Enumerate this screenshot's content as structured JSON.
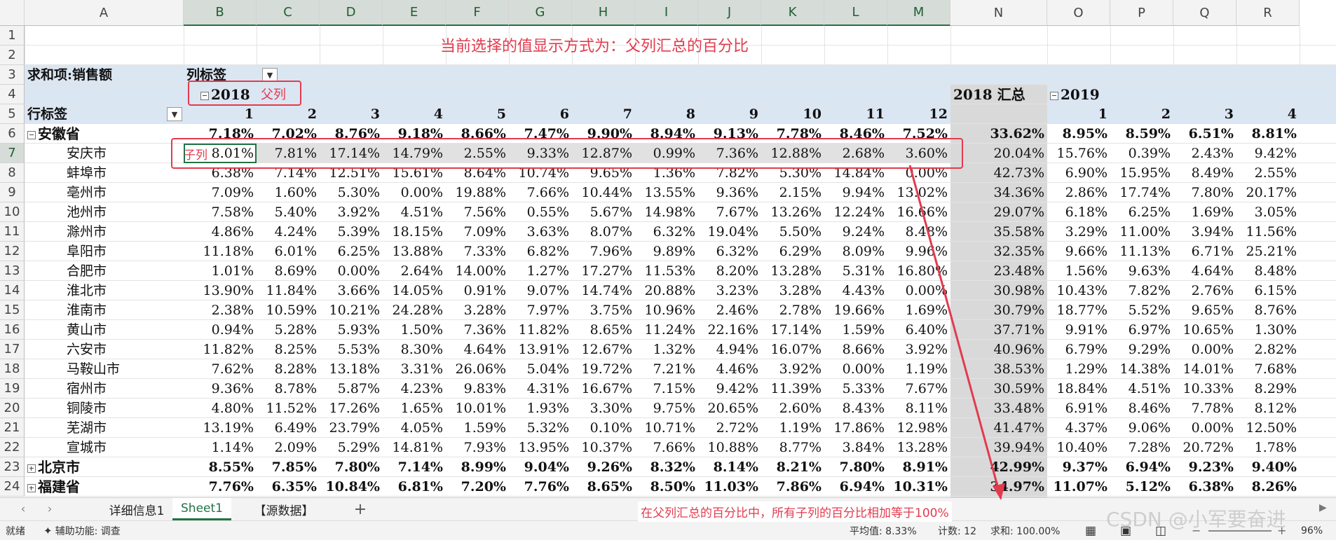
{
  "columns": [
    "A",
    "B",
    "C",
    "D",
    "E",
    "F",
    "G",
    "H",
    "I",
    "J",
    "K",
    "L",
    "M",
    "N",
    "O",
    "P",
    "Q",
    "R"
  ],
  "rows": [
    "1",
    "2",
    "3",
    "4",
    "5",
    "6",
    "7",
    "8",
    "9",
    "10",
    "11",
    "12",
    "13",
    "14",
    "15",
    "16",
    "17",
    "18",
    "19",
    "20",
    "21",
    "22",
    "23",
    "24"
  ],
  "pivot": {
    "sum_label": "求和项:销售额",
    "col_label_caption": "列标签",
    "row_label_caption": "行标签",
    "year1": "2018",
    "year1_total": "2018  汇总",
    "year2": "2019",
    "months1": [
      "1",
      "2",
      "3",
      "4",
      "5",
      "6",
      "7",
      "8",
      "9",
      "10",
      "11",
      "12"
    ],
    "months2": [
      "1",
      "2",
      "3",
      "4"
    ],
    "rows": [
      {
        "name": "安徽省",
        "level": 0,
        "bold": true,
        "toggle": "minus",
        "v": [
          "7.18%",
          "7.02%",
          "8.76%",
          "9.18%",
          "8.66%",
          "7.47%",
          "9.90%",
          "8.94%",
          "9.13%",
          "7.78%",
          "8.46%",
          "7.52%"
        ],
        "t": "33.62%",
        "w": [
          "8.95%",
          "8.59%",
          "6.51%",
          "8.81%"
        ]
      },
      {
        "name": "安庆市",
        "level": 1,
        "bold": false,
        "v": [
          "8.01%",
          "7.81%",
          "17.14%",
          "14.79%",
          "2.55%",
          "9.33%",
          "12.87%",
          "0.99%",
          "7.36%",
          "12.88%",
          "2.68%",
          "3.60%"
        ],
        "t": "20.04%",
        "w": [
          "15.76%",
          "0.39%",
          "2.43%",
          "9.42%"
        ]
      },
      {
        "name": "蚌埠市",
        "level": 1,
        "bold": false,
        "v": [
          "6.38%",
          "7.14%",
          "12.51%",
          "15.61%",
          "8.64%",
          "10.74%",
          "9.65%",
          "1.36%",
          "7.82%",
          "5.30%",
          "14.84%",
          "0.00%"
        ],
        "t": "42.73%",
        "w": [
          "6.90%",
          "15.95%",
          "8.49%",
          "2.55%"
        ]
      },
      {
        "name": "亳州市",
        "level": 1,
        "bold": false,
        "v": [
          "7.09%",
          "1.60%",
          "5.30%",
          "0.00%",
          "19.88%",
          "7.66%",
          "10.44%",
          "13.55%",
          "9.36%",
          "2.15%",
          "9.94%",
          "13.02%"
        ],
        "t": "34.36%",
        "w": [
          "2.86%",
          "17.74%",
          "7.80%",
          "20.17%"
        ]
      },
      {
        "name": "池州市",
        "level": 1,
        "bold": false,
        "v": [
          "7.58%",
          "5.40%",
          "3.92%",
          "4.51%",
          "7.56%",
          "0.55%",
          "5.67%",
          "14.98%",
          "7.67%",
          "13.26%",
          "12.24%",
          "16.66%"
        ],
        "t": "29.07%",
        "w": [
          "6.18%",
          "6.25%",
          "1.69%",
          "3.05%"
        ]
      },
      {
        "name": "滁州市",
        "level": 1,
        "bold": false,
        "v": [
          "4.86%",
          "4.24%",
          "5.39%",
          "18.15%",
          "7.09%",
          "3.63%",
          "8.07%",
          "6.32%",
          "19.04%",
          "5.50%",
          "9.24%",
          "8.48%"
        ],
        "t": "35.58%",
        "w": [
          "3.29%",
          "11.00%",
          "3.94%",
          "11.56%"
        ]
      },
      {
        "name": "阜阳市",
        "level": 1,
        "bold": false,
        "v": [
          "11.18%",
          "6.01%",
          "6.25%",
          "13.88%",
          "7.33%",
          "6.82%",
          "7.96%",
          "9.89%",
          "6.32%",
          "6.29%",
          "8.09%",
          "9.96%"
        ],
        "t": "32.35%",
        "w": [
          "9.66%",
          "11.13%",
          "6.71%",
          "25.21%"
        ]
      },
      {
        "name": "合肥市",
        "level": 1,
        "bold": false,
        "v": [
          "1.01%",
          "8.69%",
          "0.00%",
          "2.64%",
          "14.00%",
          "1.27%",
          "17.27%",
          "11.53%",
          "8.20%",
          "13.28%",
          "5.31%",
          "16.80%"
        ],
        "t": "23.48%",
        "w": [
          "1.56%",
          "9.63%",
          "4.64%",
          "8.48%"
        ]
      },
      {
        "name": "淮北市",
        "level": 1,
        "bold": false,
        "v": [
          "13.90%",
          "11.84%",
          "3.66%",
          "14.05%",
          "0.91%",
          "9.07%",
          "14.74%",
          "20.88%",
          "3.23%",
          "3.28%",
          "4.43%",
          "0.00%"
        ],
        "t": "30.98%",
        "w": [
          "10.43%",
          "7.82%",
          "2.76%",
          "6.15%"
        ]
      },
      {
        "name": "淮南市",
        "level": 1,
        "bold": false,
        "v": [
          "2.38%",
          "10.59%",
          "10.21%",
          "24.28%",
          "3.28%",
          "7.97%",
          "3.75%",
          "10.96%",
          "2.46%",
          "2.78%",
          "19.66%",
          "1.69%"
        ],
        "t": "30.79%",
        "w": [
          "18.77%",
          "5.52%",
          "9.65%",
          "8.76%"
        ]
      },
      {
        "name": "黄山市",
        "level": 1,
        "bold": false,
        "v": [
          "0.94%",
          "5.28%",
          "5.93%",
          "1.50%",
          "7.36%",
          "11.82%",
          "8.65%",
          "11.24%",
          "22.16%",
          "17.14%",
          "1.59%",
          "6.40%"
        ],
        "t": "37.71%",
        "w": [
          "9.91%",
          "6.97%",
          "10.65%",
          "1.30%"
        ]
      },
      {
        "name": "六安市",
        "level": 1,
        "bold": false,
        "v": [
          "11.82%",
          "8.25%",
          "5.53%",
          "8.30%",
          "4.64%",
          "13.91%",
          "12.67%",
          "1.32%",
          "4.94%",
          "16.07%",
          "8.66%",
          "3.92%"
        ],
        "t": "40.96%",
        "w": [
          "6.79%",
          "9.29%",
          "0.00%",
          "2.82%"
        ]
      },
      {
        "name": "马鞍山市",
        "level": 1,
        "bold": false,
        "v": [
          "7.62%",
          "8.28%",
          "13.18%",
          "3.31%",
          "26.06%",
          "5.04%",
          "19.72%",
          "7.21%",
          "4.46%",
          "3.92%",
          "0.00%",
          "1.19%"
        ],
        "t": "38.53%",
        "w": [
          "1.29%",
          "14.38%",
          "14.01%",
          "7.68%"
        ]
      },
      {
        "name": "宿州市",
        "level": 1,
        "bold": false,
        "v": [
          "9.36%",
          "8.78%",
          "5.87%",
          "4.23%",
          "9.83%",
          "4.31%",
          "16.67%",
          "7.15%",
          "9.42%",
          "11.39%",
          "5.33%",
          "7.67%"
        ],
        "t": "30.59%",
        "w": [
          "18.84%",
          "4.51%",
          "10.33%",
          "8.29%"
        ]
      },
      {
        "name": "铜陵市",
        "level": 1,
        "bold": false,
        "v": [
          "4.80%",
          "11.52%",
          "17.26%",
          "1.65%",
          "10.01%",
          "1.93%",
          "3.30%",
          "9.75%",
          "20.65%",
          "2.60%",
          "8.43%",
          "8.11%"
        ],
        "t": "33.48%",
        "w": [
          "6.91%",
          "8.46%",
          "7.78%",
          "8.12%"
        ]
      },
      {
        "name": "芜湖市",
        "level": 1,
        "bold": false,
        "v": [
          "13.19%",
          "6.49%",
          "23.79%",
          "4.05%",
          "1.59%",
          "5.32%",
          "0.10%",
          "10.71%",
          "2.72%",
          "1.19%",
          "17.86%",
          "12.98%"
        ],
        "t": "41.47%",
        "w": [
          "4.37%",
          "9.06%",
          "0.00%",
          "12.50%"
        ]
      },
      {
        "name": "宣城市",
        "level": 1,
        "bold": false,
        "v": [
          "1.14%",
          "2.09%",
          "5.29%",
          "14.81%",
          "7.93%",
          "13.95%",
          "10.37%",
          "7.66%",
          "10.88%",
          "8.77%",
          "3.84%",
          "13.28%"
        ],
        "t": "39.94%",
        "w": [
          "10.40%",
          "7.28%",
          "20.72%",
          "1.78%"
        ]
      },
      {
        "name": "北京市",
        "level": 0,
        "bold": true,
        "toggle": "plus",
        "v": [
          "8.55%",
          "7.85%",
          "7.80%",
          "7.14%",
          "8.99%",
          "9.04%",
          "9.26%",
          "8.32%",
          "8.14%",
          "8.21%",
          "7.80%",
          "8.91%"
        ],
        "t": "42.99%",
        "w": [
          "9.37%",
          "6.94%",
          "9.23%",
          "9.40%"
        ]
      },
      {
        "name": "福建省",
        "level": 0,
        "bold": true,
        "toggle": "plus",
        "v": [
          "7.76%",
          "6.35%",
          "10.84%",
          "6.81%",
          "7.20%",
          "7.76%",
          "8.65%",
          "8.50%",
          "11.03%",
          "7.86%",
          "6.94%",
          "10.31%"
        ],
        "t": "34.97%",
        "w": [
          "11.07%",
          "5.12%",
          "6.38%",
          "8.26%"
        ]
      }
    ]
  },
  "annotations": {
    "title": "当前选择的值显示方式为：父列汇总的百分比",
    "parent_col": "父列",
    "child_col": "子列",
    "note": "在父列汇总的百分比中，所有子列的百分比相加等于100%"
  },
  "sheet_tabs": [
    "详细信息1",
    "Sheet1",
    "【源数据】"
  ],
  "active_tab": "Sheet1",
  "add_sheet": "+",
  "status": {
    "ready": "就绪",
    "accessibility": "辅助功能: 调查",
    "average": "平均值: 8.33%",
    "count": "计数: 12",
    "sum": "求和: 100.00%",
    "zoom": "96%"
  },
  "watermark": "CSDN @小军要奋进",
  "colors": {
    "accent": "#217346",
    "annotation": "#e23b4e",
    "header_band": "#dbe6f3",
    "total_col": "#d9d9d9"
  }
}
